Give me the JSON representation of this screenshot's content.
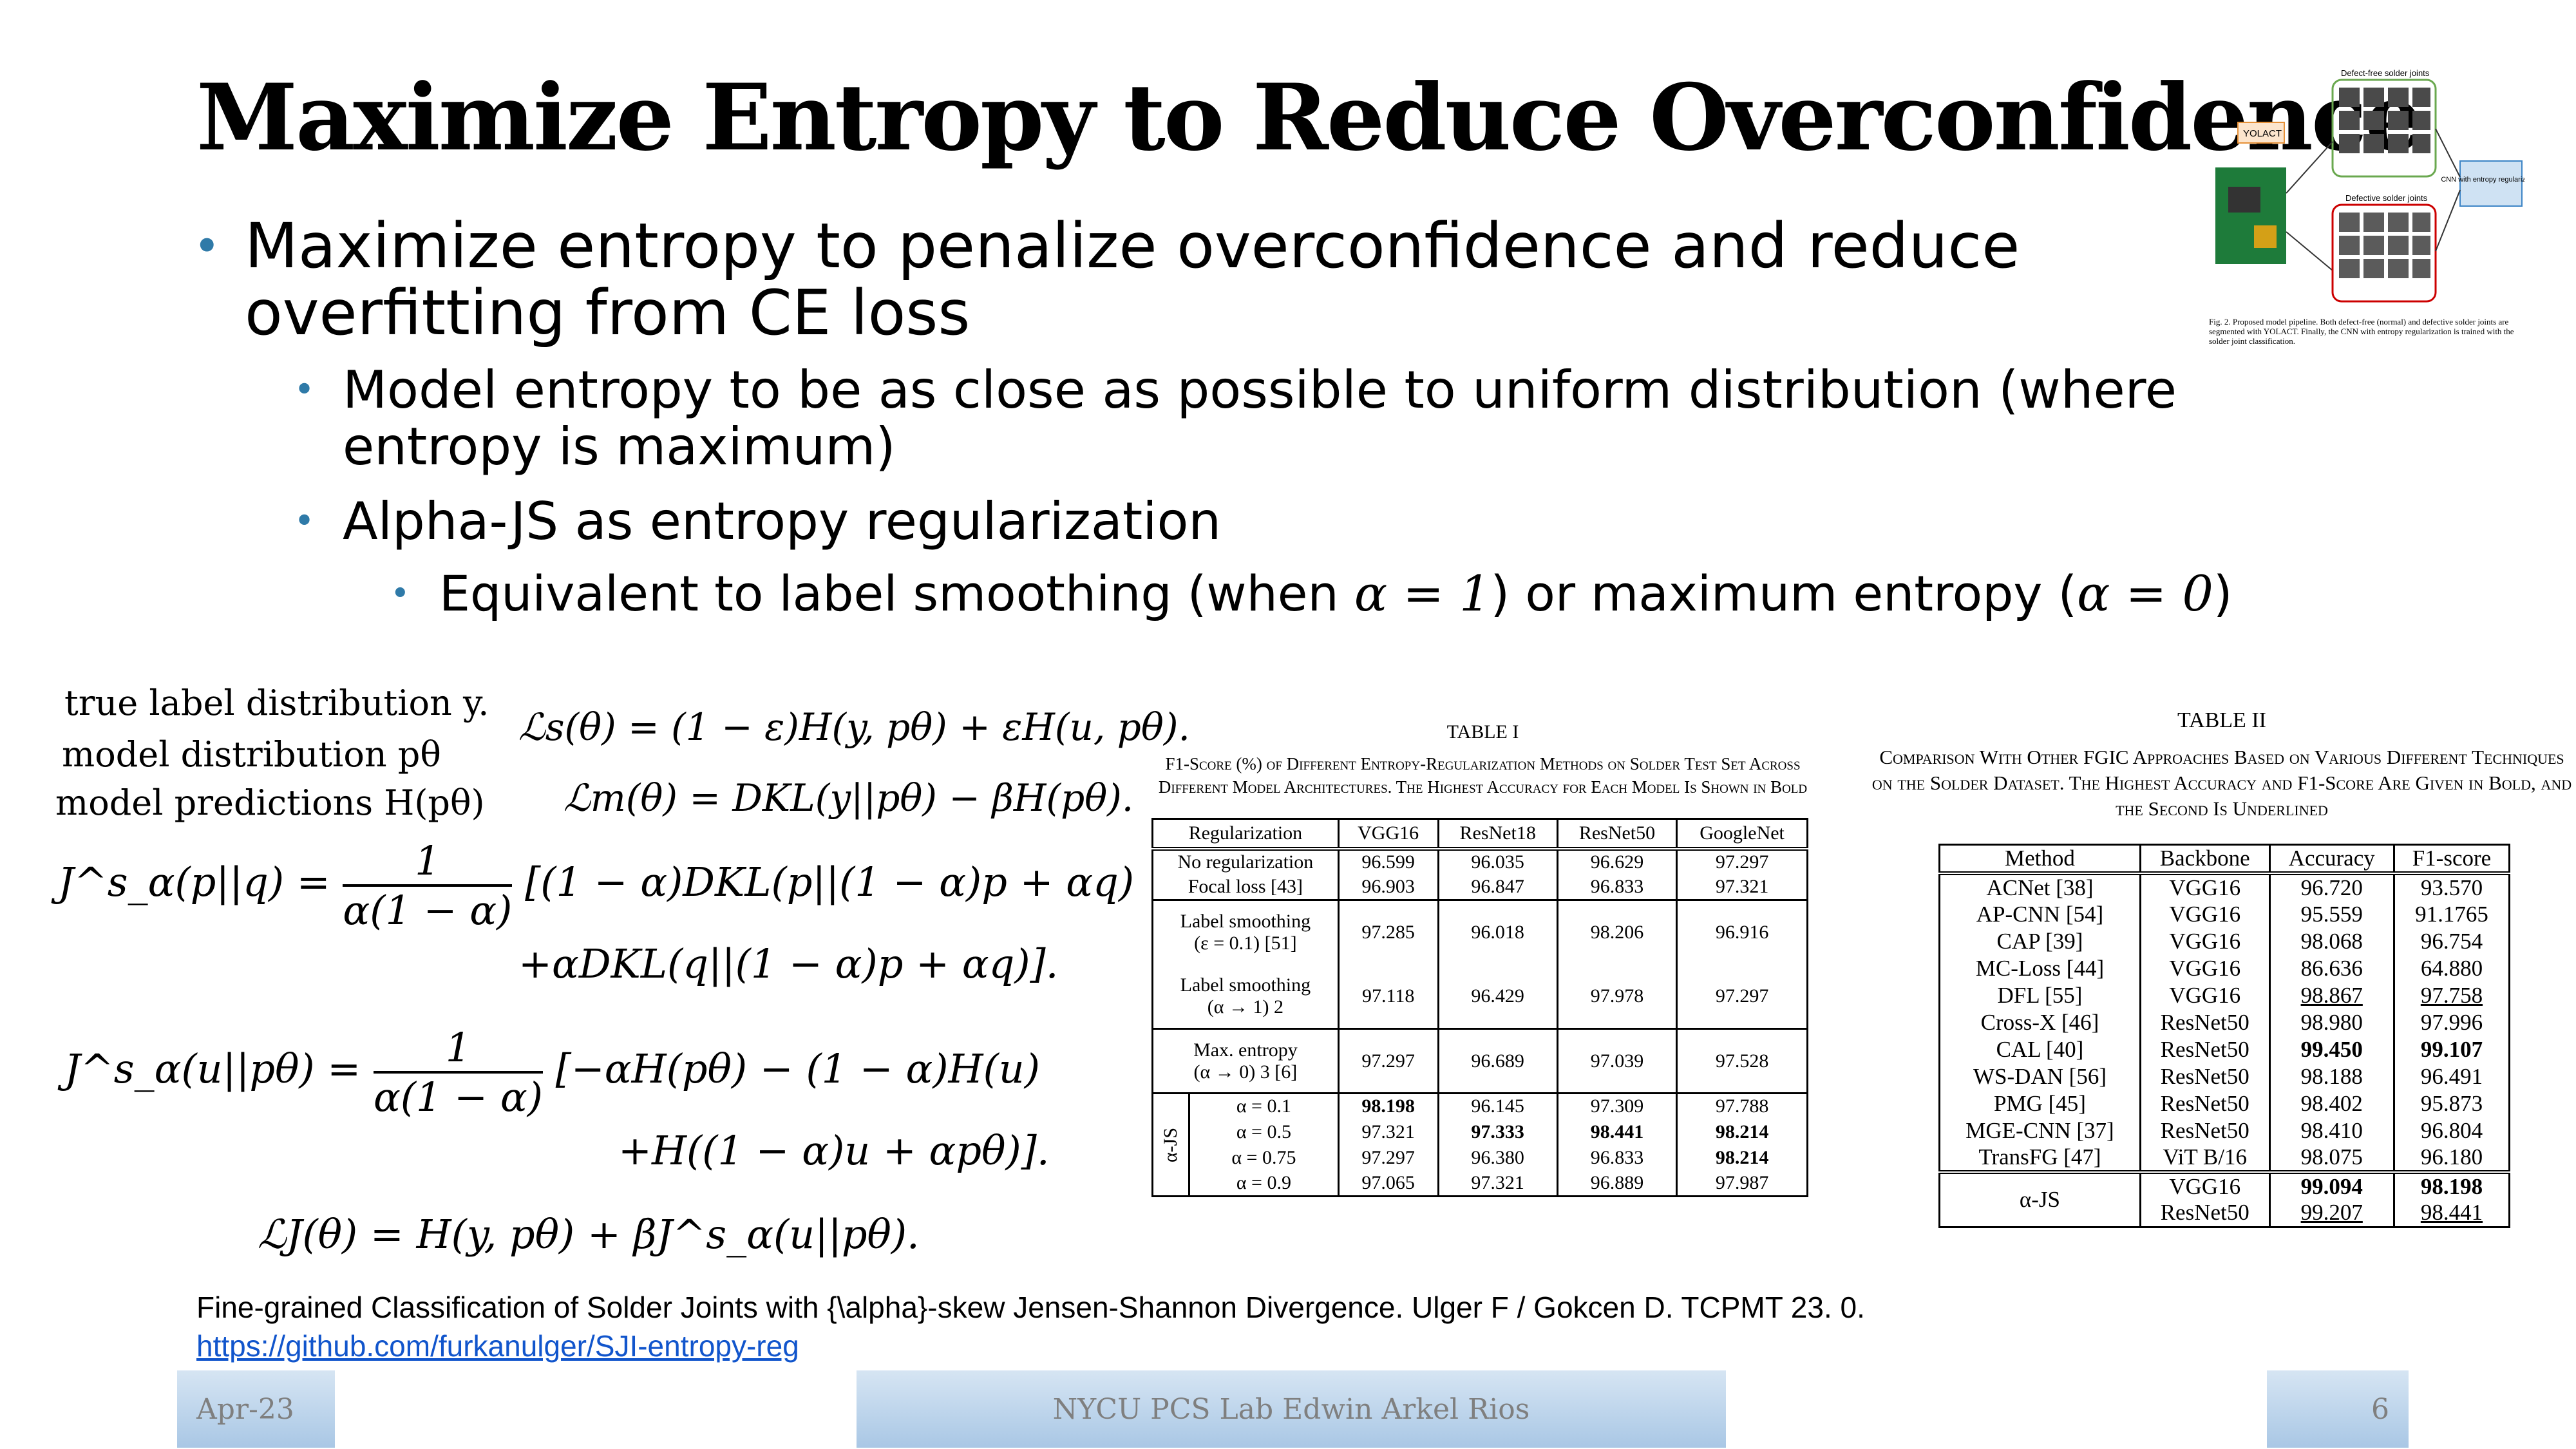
{
  "title": "Maximize Entropy to Reduce Overconfidence",
  "bullets": {
    "b1": "Maximize entropy to penalize overconfidence and reduce overfitting from CE loss",
    "b2a": "Model entropy to be as close as possible to uniform distribution (where entropy is maximum)",
    "b2b": "Alpha-JS as entropy regularization",
    "b3_pre": "Equivalent to label smoothing (when ",
    "b3_m1": "α = 1",
    "b3_mid": ") or maximum entropy (",
    "b3_m2": "α = 0",
    "b3_post": ")"
  },
  "figure": {
    "labels": {
      "yolact": "YOLACT",
      "defect_free": "Defect-free solder joints",
      "defective": "Defective solder joints",
      "cnn": "CNN with entropy regularization"
    },
    "caption": "Fig. 2. Proposed model pipeline. Both defect-free (normal) and defective solder joints are segmented with YOLACT. Finally, the CNN with entropy regularization is trained with the solder joint classification."
  },
  "equations": {
    "l1": "true  label  distribution  y.",
    "l2": "model  distribution  pθ",
    "l3": "model  predictions  H(pθ)",
    "ls": "ℒs(θ) = (1 − ε)H(y, pθ) + εH(u, pθ).",
    "lm": "ℒm(θ) = DKL(y||pθ) − βH(pθ).",
    "js_lhs": "J^s_α(p||q) =",
    "frac_num": "1",
    "frac_den": "α(1 − α)",
    "js_r1": "[(1 − α)DKL(p||(1 − α)p + αq)",
    "js_r2": "+αDKL(q||(1 − α)p + αq)].",
    "ju_lhs": "J^s_α(u||pθ) =",
    "ju_r1": "[−αH(pθ) − (1 − α)H(u)",
    "ju_r2": "+H((1 − α)u + αpθ)].",
    "lj": "ℒJ(θ) = H(y, pθ) + βJ^s_α(u||pθ)."
  },
  "table1": {
    "label": "TABLE I",
    "caption": "F1-Score (%) of Different Entropy-Regularization Methods on Solder Test Set Across Different Model Architectures. The Highest Accuracy for Each Model Is Shown in Bold",
    "headers": [
      "Regularization",
      "VGG16",
      "ResNet18",
      "ResNet50",
      "GoogleNet"
    ],
    "rows": [
      {
        "name": "No regularization",
        "v": [
          "96.599",
          "96.035",
          "96.629",
          "97.297"
        ]
      },
      {
        "name": "Focal loss [43]",
        "v": [
          "96.903",
          "96.847",
          "96.833",
          "97.321"
        ]
      },
      {
        "name": "Label smoothing",
        "sub": "(ε = 0.1) [51]",
        "v": [
          "97.285",
          "96.018",
          "98.206",
          "96.916"
        ]
      },
      {
        "name": "Label smoothing",
        "sub": "(α → 1) 2",
        "v": [
          "97.118",
          "96.429",
          "97.978",
          "97.297"
        ]
      },
      {
        "name": "Max. entropy",
        "sub": "(α → 0) 3 [6]",
        "v": [
          "97.297",
          "96.689",
          "97.039",
          "97.528"
        ]
      }
    ],
    "js_label": "α-JS",
    "js_rows": [
      {
        "a": "α = 0.1",
        "v": [
          "98.198",
          "96.145",
          "97.309",
          "97.788"
        ]
      },
      {
        "a": "α = 0.5",
        "v": [
          "97.321",
          "97.333",
          "98.441",
          "98.214"
        ]
      },
      {
        "a": "α = 0.75",
        "v": [
          "97.297",
          "96.380",
          "96.833",
          "98.214"
        ]
      },
      {
        "a": "α = 0.9",
        "v": [
          "97.065",
          "97.321",
          "96.889",
          "97.987"
        ]
      }
    ]
  },
  "table2": {
    "label": "TABLE II",
    "caption": "Comparison With Other FGIC Approaches Based on Various Different Techniques on the Solder Dataset. The Highest Accuracy and F1-Score Are Given in Bold, and the Second Is Underlined",
    "headers": [
      "Method",
      "Backbone",
      "Accuracy",
      "F1-score"
    ],
    "rows": [
      [
        "ACNet [38]",
        "VGG16",
        "96.720",
        "93.570"
      ],
      [
        "AP-CNN [54]",
        "VGG16",
        "95.559",
        "91.1765"
      ],
      [
        "CAP [39]",
        "VGG16",
        "98.068",
        "96.754"
      ],
      [
        "MC-Loss [44]",
        "VGG16",
        "86.636",
        "64.880"
      ],
      [
        "DFL [55]",
        "VGG16",
        "98.867",
        "97.758"
      ],
      [
        "Cross-X [46]",
        "ResNet50",
        "98.980",
        "97.996"
      ],
      [
        "CAL [40]",
        "ResNet50",
        "99.450",
        "99.107"
      ],
      [
        "WS-DAN [56]",
        "ResNet50",
        "98.188",
        "96.491"
      ],
      [
        "PMG [45]",
        "ResNet50",
        "98.402",
        "95.873"
      ],
      [
        "MGE-CNN [37]",
        "ResNet50",
        "98.410",
        "96.804"
      ],
      [
        "TransFG [47]",
        "ViT B/16",
        "98.075",
        "96.180"
      ]
    ],
    "js_method": "α-JS",
    "js_rows": [
      [
        "VGG16",
        "99.094",
        "98.198"
      ],
      [
        "ResNet50",
        "99.207",
        "98.441"
      ]
    ]
  },
  "reference": {
    "citation": "Fine-grained Classification of Solder Joints with {\\alpha}-skew Jensen-Shannon Divergence. Ulger F / Gokcen D. TCPMT 23. 0.",
    "link": "https://github.com/furkanulger/SJI-entropy-reg"
  },
  "footer": {
    "date": "Apr-23",
    "center": "NYCU PCS Lab Edwin Arkel Rios",
    "page": "6"
  }
}
